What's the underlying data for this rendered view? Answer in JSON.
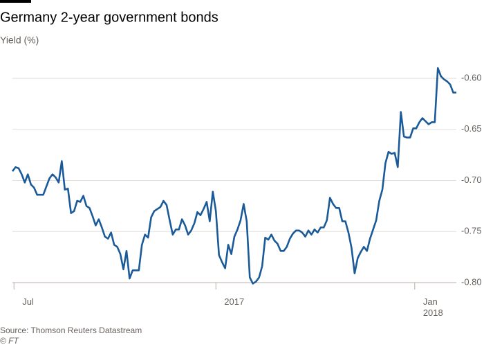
{
  "chart_data": {
    "type": "line",
    "title": "Germany 2-year government bonds",
    "subtitle": "Yield (%)",
    "source": "Source: Thomson Reuters Datastream",
    "credit": "© FT",
    "color": "#1a5a99",
    "grid": true,
    "values": [
      -0.691,
      -0.687,
      -0.688,
      -0.694,
      -0.702,
      -0.694,
      -0.704,
      -0.707,
      -0.714,
      -0.714,
      -0.714,
      -0.706,
      -0.698,
      -0.694,
      -0.697,
      -0.702,
      -0.681,
      -0.709,
      -0.708,
      -0.732,
      -0.73,
      -0.72,
      -0.721,
      -0.715,
      -0.725,
      -0.727,
      -0.735,
      -0.744,
      -0.738,
      -0.746,
      -0.755,
      -0.757,
      -0.751,
      -0.763,
      -0.765,
      -0.772,
      -0.787,
      -0.769,
      -0.796,
      -0.788,
      -0.788,
      -0.788,
      -0.763,
      -0.753,
      -0.756,
      -0.736,
      -0.73,
      -0.728,
      -0.726,
      -0.72,
      -0.724,
      -0.739,
      -0.753,
      -0.748,
      -0.748,
      -0.738,
      -0.744,
      -0.753,
      -0.749,
      -0.742,
      -0.731,
      -0.734,
      -0.728,
      -0.721,
      -0.74,
      -0.711,
      -0.73,
      -0.773,
      -0.78,
      -0.786,
      -0.763,
      -0.772,
      -0.755,
      -0.748,
      -0.739,
      -0.723,
      -0.74,
      -0.795,
      -0.801,
      -0.799,
      -0.795,
      -0.784,
      -0.756,
      -0.758,
      -0.753,
      -0.759,
      -0.762,
      -0.769,
      -0.769,
      -0.765,
      -0.757,
      -0.752,
      -0.749,
      -0.749,
      -0.751,
      -0.755,
      -0.749,
      -0.753,
      -0.748,
      -0.751,
      -0.746,
      -0.746,
      -0.739,
      -0.717,
      -0.723,
      -0.727,
      -0.727,
      -0.74,
      -0.74,
      -0.751,
      -0.766,
      -0.791,
      -0.776,
      -0.77,
      -0.765,
      -0.769,
      -0.757,
      -0.748,
      -0.739,
      -0.72,
      -0.709,
      -0.683,
      -0.672,
      -0.674,
      -0.673,
      -0.687,
      -0.633,
      -0.657,
      -0.658,
      -0.658,
      -0.649,
      -0.649,
      -0.643,
      -0.639,
      -0.642,
      -0.645,
      -0.643,
      -0.643,
      -0.59,
      -0.598,
      -0.601,
      -0.603,
      -0.606,
      -0.614,
      -0.614
    ],
    "xlim": [
      0,
      144
    ],
    "xticks": [
      {
        "value": 0.5,
        "label": "Jul"
      },
      {
        "value": 66,
        "label": "2017"
      },
      {
        "value": 130.5,
        "label": "Jan\n2018"
      }
    ],
    "ylim": [
      -0.8,
      -0.583
    ],
    "yticks": [
      {
        "value": -0.6,
        "label": "-0.60"
      },
      -0.65,
      {
        "value": -0.7,
        "label": "-0.70"
      },
      -0.75,
      {
        "value": -0.8,
        "label": "-0.80"
      }
    ]
  }
}
